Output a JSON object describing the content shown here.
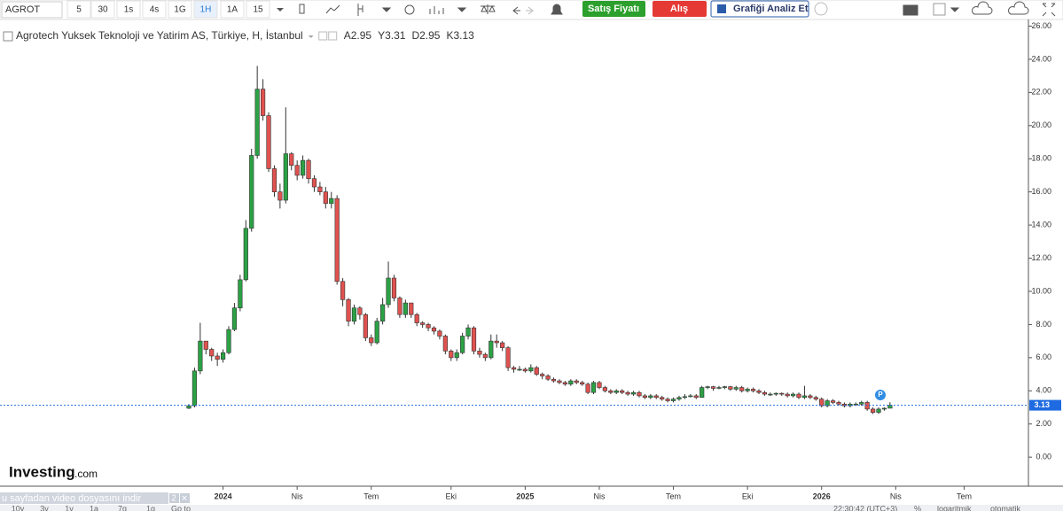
{
  "toolbar": {
    "symbol": "AGROT",
    "intervals": [
      "5",
      "30",
      "1s",
      "4s",
      "1G",
      "1H",
      "1A",
      "15"
    ],
    "sell": "Satış Fiyatı",
    "buy": "Alış",
    "analyze": "Grafiği Analiz Et"
  },
  "chart_data": {
    "type": "candlestick",
    "title": "Agrotech Yuksek Teknoloji ve Yatirim AS, Türkiye, H, İstanbul",
    "ohlc_legend": [
      {
        "value": 2.95,
        "label": "A2.95"
      },
      {
        "value": 3.31,
        "label": "Y3.31"
      },
      {
        "value": 2.95,
        "label": "D2.95"
      },
      {
        "value": 3.13,
        "label": "K3.13"
      }
    ],
    "up_color": "#2ba245",
    "down_color": "#e0524f",
    "last_price": 3.13,
    "last_price_color": "#1e6ae0",
    "categories": [
      null,
      null,
      null,
      null,
      null,
      null,
      "2024",
      null,
      null,
      null,
      null,
      null,
      null,
      null,
      null,
      null,
      null,
      null,
      null,
      "Nis",
      null,
      null,
      null,
      null,
      null,
      null,
      null,
      null,
      null,
      null,
      null,
      null,
      "Tem",
      null,
      null,
      null,
      null,
      null,
      null,
      null,
      null,
      null,
      null,
      null,
      null,
      null,
      "Eki",
      null,
      null,
      null,
      null,
      null,
      null,
      null,
      null,
      null,
      null,
      null,
      null,
      "2025",
      null,
      null,
      null,
      null,
      null,
      null,
      null,
      null,
      null,
      null,
      null,
      null,
      "Nis",
      null,
      null,
      null,
      null,
      null,
      null,
      null,
      null,
      null,
      null,
      null,
      null,
      "Tem",
      null,
      null,
      null,
      null,
      null,
      null,
      null,
      null,
      null,
      null,
      null,
      null,
      "Eki",
      null,
      null,
      null,
      null,
      null,
      null,
      null,
      null,
      null,
      null,
      null,
      null,
      "2026",
      null,
      null,
      null,
      null,
      null,
      null,
      null,
      null,
      null,
      null,
      null,
      null,
      "Nis",
      null,
      null,
      null,
      null,
      null,
      null,
      null,
      null,
      null,
      null,
      null,
      "Tem",
      null,
      null,
      null,
      null,
      null,
      null,
      null,
      null,
      null,
      null
    ],
    "open": [
      2.95,
      3.1,
      5.2,
      7.0,
      6.5,
      6.1,
      5.9,
      6.3,
      7.7,
      9.0,
      10.7,
      13.8,
      18.2,
      22.2,
      20.6,
      17.4,
      16.0,
      15.5,
      18.3,
      17.6,
      17.0,
      17.9,
      16.8,
      16.3,
      16.0,
      15.3,
      15.6,
      10.6,
      9.5,
      8.2,
      9.0,
      8.6,
      7.2,
      6.9,
      8.2,
      9.2,
      10.8,
      9.6,
      8.6,
      9.3,
      8.6,
      8.1,
      8.0,
      7.8,
      7.6,
      7.3,
      6.4,
      6.0,
      6.3,
      7.3,
      7.8,
      6.4,
      6.2,
      6.0,
      7.0,
      6.9,
      6.6,
      5.4,
      5.3,
      5.3,
      5.2,
      5.4,
      5.0,
      4.9,
      4.7,
      4.6,
      4.5,
      4.4,
      4.6,
      4.5,
      4.4,
      3.9,
      4.5,
      4.2,
      4.0,
      3.9,
      4.0,
      3.9,
      3.8,
      3.9,
      3.7,
      3.6,
      3.7,
      3.6,
      3.5,
      3.4,
      3.5,
      3.6,
      3.65,
      3.7,
      3.6,
      4.2,
      4.25,
      4.15,
      4.2,
      4.25,
      4.1,
      4.2,
      4.0,
      4.1,
      4.0,
      3.9,
      3.8,
      3.8,
      3.85,
      3.8,
      3.7,
      3.8,
      3.6,
      3.7,
      3.6,
      3.5,
      3.1,
      3.4,
      3.3,
      3.2,
      3.1,
      3.2,
      3.2,
      3.3,
      2.9,
      2.7,
      2.9,
      2.95,
      null,
      null,
      null,
      null,
      null,
      null,
      null,
      null,
      null,
      null,
      null,
      null,
      null,
      null,
      null,
      null,
      null,
      null,
      null,
      null,
      null,
      null,
      null
    ],
    "high": [
      3.2,
      5.4,
      8.1,
      7.0,
      6.6,
      6.3,
      6.5,
      7.9,
      9.3,
      11.0,
      14.3,
      18.6,
      23.6,
      22.8,
      20.8,
      17.6,
      16.5,
      21.1,
      18.4,
      17.9,
      18.2,
      18.0,
      17.0,
      16.6,
      16.3,
      16.0,
      15.8,
      10.8,
      9.6,
      9.2,
      9.1,
      8.7,
      7.4,
      8.4,
      9.6,
      11.8,
      11.0,
      9.7,
      9.5,
      9.3,
      8.7,
      8.2,
      8.1,
      7.9,
      7.7,
      7.4,
      6.5,
      6.5,
      7.5,
      8.0,
      7.9,
      6.6,
      6.3,
      7.4,
      7.4,
      7.0,
      6.7,
      5.5,
      5.5,
      5.4,
      5.6,
      5.5,
      5.1,
      5.0,
      4.8,
      4.7,
      4.6,
      4.7,
      4.7,
      4.6,
      4.5,
      4.6,
      4.6,
      4.3,
      4.1,
      4.1,
      4.1,
      4.0,
      4.0,
      4.0,
      3.8,
      3.8,
      3.8,
      3.7,
      3.6,
      3.6,
      3.7,
      3.8,
      3.8,
      3.8,
      4.3,
      4.3,
      4.3,
      4.3,
      4.3,
      4.3,
      4.3,
      4.3,
      4.2,
      4.2,
      4.1,
      4.0,
      3.9,
      3.9,
      3.9,
      3.9,
      3.9,
      3.9,
      4.3,
      3.8,
      3.7,
      3.6,
      3.5,
      3.5,
      3.4,
      3.3,
      3.3,
      3.3,
      3.4,
      3.4,
      3.0,
      3.0,
      3.0,
      3.31,
      null,
      null,
      null,
      null,
      null,
      null,
      null,
      null,
      null,
      null,
      null,
      null,
      null,
      null,
      null,
      null,
      null,
      null,
      null,
      null,
      null,
      null,
      null
    ],
    "low": [
      2.9,
      3.0,
      5.0,
      6.2,
      5.8,
      5.5,
      5.7,
      6.2,
      7.6,
      8.8,
      10.6,
      13.6,
      18.0,
      20.3,
      17.2,
      15.7,
      15.0,
      15.3,
      17.3,
      16.7,
      16.8,
      16.5,
      16.0,
      15.8,
      15.0,
      15.0,
      10.4,
      9.1,
      7.9,
      8.0,
      8.3,
      7.0,
      6.7,
      6.8,
      8.0,
      9.0,
      9.4,
      8.4,
      8.4,
      8.4,
      7.9,
      7.8,
      7.6,
      7.4,
      7.1,
      6.2,
      5.8,
      5.8,
      6.2,
      7.1,
      6.2,
      6.0,
      5.8,
      5.9,
      6.6,
      6.4,
      5.2,
      5.1,
      5.2,
      5.1,
      5.1,
      4.9,
      4.7,
      4.6,
      4.5,
      4.4,
      4.3,
      4.3,
      4.4,
      4.3,
      3.8,
      3.8,
      4.1,
      3.9,
      3.8,
      3.8,
      3.8,
      3.7,
      3.7,
      3.6,
      3.5,
      3.5,
      3.5,
      3.4,
      3.3,
      3.3,
      3.4,
      3.5,
      3.6,
      3.5,
      3.6,
      4.1,
      4.0,
      4.1,
      4.1,
      4.0,
      4.0,
      3.9,
      3.9,
      3.9,
      3.8,
      3.7,
      3.7,
      3.7,
      3.7,
      3.6,
      3.6,
      3.5,
      3.5,
      3.5,
      3.4,
      3.0,
      3.0,
      3.2,
      3.1,
      3.0,
      3.0,
      3.1,
      3.1,
      2.8,
      2.6,
      2.6,
      2.8,
      2.95,
      null,
      null,
      null,
      null,
      null,
      null,
      null,
      null,
      null,
      null,
      null,
      null,
      null,
      null,
      null,
      null,
      null,
      null,
      null,
      null,
      null,
      null,
      null
    ],
    "close": [
      3.1,
      5.2,
      7.0,
      6.5,
      6.1,
      5.9,
      6.3,
      7.7,
      9.0,
      10.7,
      13.8,
      18.2,
      22.2,
      20.6,
      17.4,
      16.0,
      15.5,
      18.3,
      17.6,
      17.0,
      17.9,
      16.8,
      16.3,
      16.0,
      15.3,
      15.6,
      10.6,
      9.5,
      8.2,
      9.0,
      8.6,
      7.2,
      6.9,
      8.2,
      9.2,
      10.8,
      9.6,
      8.6,
      9.3,
      8.6,
      8.1,
      8.0,
      7.8,
      7.6,
      7.3,
      6.4,
      6.0,
      6.3,
      7.3,
      7.8,
      6.4,
      6.2,
      6.0,
      7.0,
      6.9,
      6.6,
      5.4,
      5.3,
      5.3,
      5.2,
      5.4,
      5.0,
      4.9,
      4.7,
      4.6,
      4.5,
      4.4,
      4.6,
      4.5,
      4.4,
      3.9,
      4.5,
      4.2,
      4.0,
      3.9,
      4.0,
      3.9,
      3.8,
      3.9,
      3.7,
      3.6,
      3.7,
      3.6,
      3.5,
      3.4,
      3.5,
      3.6,
      3.65,
      3.7,
      3.6,
      4.2,
      4.25,
      4.15,
      4.2,
      4.25,
      4.1,
      4.2,
      4.0,
      4.1,
      4.0,
      3.9,
      3.8,
      3.8,
      3.85,
      3.8,
      3.7,
      3.8,
      3.6,
      3.7,
      3.6,
      3.5,
      3.1,
      3.4,
      3.3,
      3.2,
      3.1,
      3.2,
      3.2,
      3.3,
      2.9,
      2.7,
      2.9,
      2.95,
      3.13,
      null,
      null,
      null,
      null,
      null,
      null,
      null,
      null,
      null,
      null,
      null,
      null,
      null,
      null,
      null,
      null,
      null,
      null,
      null,
      null,
      null,
      null,
      null
    ],
    "ylim": [
      -1.7,
      26.4
    ],
    "yticks": [
      {
        "value": 0,
        "label": "0.00"
      },
      {
        "value": 2,
        "label": "2.00"
      },
      {
        "value": 4,
        "label": "4.00"
      },
      {
        "value": 6,
        "label": "6.00"
      },
      {
        "value": 8,
        "label": "8.00"
      },
      {
        "value": 10,
        "label": "10.00"
      },
      {
        "value": 12,
        "label": "12.00"
      },
      {
        "value": 14,
        "label": "14.00"
      },
      {
        "value": 16,
        "label": "16.00"
      },
      {
        "value": 18,
        "label": "18.00"
      },
      {
        "value": 20,
        "label": "20.00"
      },
      {
        "value": 22,
        "label": "22.00"
      },
      {
        "value": 24,
        "label": "24.00"
      },
      {
        "value": 26,
        "label": "26.00"
      }
    ],
    "grid": false
  },
  "branding": {
    "name": "Investing",
    "suffix": ".com"
  },
  "overlay": {
    "text": "u sayfadan video dosyasını indir",
    "count": "2",
    "close": "✕"
  },
  "footer": {
    "ranges": [
      "10y",
      "3y",
      "1y",
      "1a",
      "7g",
      "1g"
    ],
    "goto": "Go to",
    "time": "22:30:42 (UTC+3)",
    "percent": "%",
    "log": "logaritmik",
    "auto": "otomatik"
  }
}
